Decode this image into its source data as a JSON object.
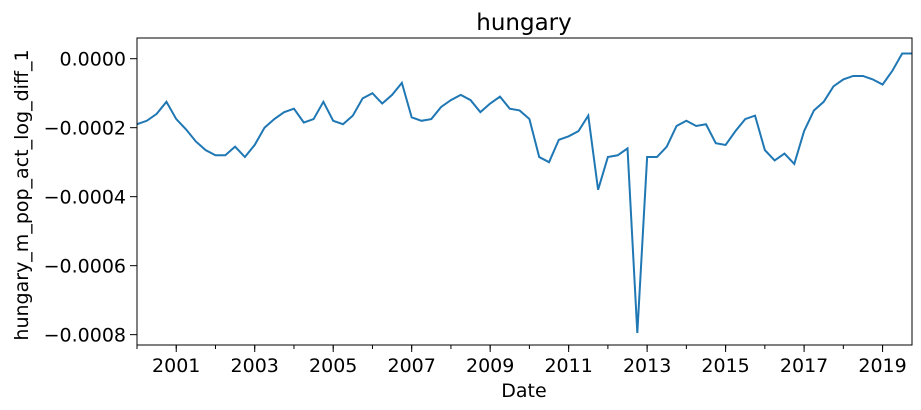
{
  "chart_data": {
    "type": "line",
    "title": "hungary",
    "xlabel": "Date",
    "ylabel": "hungary_m_pop_act_log_diff_1",
    "series_color": "#1f77b4",
    "xlim": [
      "2000-01",
      "2019-10"
    ],
    "ylim": [
      -0.00083,
      6e-05
    ],
    "x_ticks": [
      "2001",
      "2003",
      "2005",
      "2007",
      "2009",
      "2011",
      "2013",
      "2015",
      "2017",
      "2019"
    ],
    "y_ticks": [
      {
        "value": 0.0,
        "label": "0.0000"
      },
      {
        "value": -0.0002,
        "label": "−0.0002"
      },
      {
        "value": -0.0004,
        "label": "−0.0004"
      },
      {
        "value": -0.0006,
        "label": "−0.0006"
      },
      {
        "value": -0.0008,
        "label": "−0.0008"
      }
    ],
    "grid": false,
    "series": [
      {
        "points": [
          [
            "2000-01",
            -0.00019
          ],
          [
            "2000-04",
            -0.00018
          ],
          [
            "2000-07",
            -0.00016
          ],
          [
            "2000-10",
            -0.000125
          ],
          [
            "2001-01",
            -0.000175
          ],
          [
            "2001-04",
            -0.000205
          ],
          [
            "2001-07",
            -0.00024
          ],
          [
            "2001-10",
            -0.000265
          ],
          [
            "2002-01",
            -0.00028
          ],
          [
            "2002-04",
            -0.00028
          ],
          [
            "2002-07",
            -0.000255
          ],
          [
            "2002-10",
            -0.000285
          ],
          [
            "2003-01",
            -0.00025
          ],
          [
            "2003-04",
            -0.0002
          ],
          [
            "2003-07",
            -0.000175
          ],
          [
            "2003-10",
            -0.000155
          ],
          [
            "2004-01",
            -0.000145
          ],
          [
            "2004-04",
            -0.000185
          ],
          [
            "2004-07",
            -0.000175
          ],
          [
            "2004-10",
            -0.000125
          ],
          [
            "2005-01",
            -0.00018
          ],
          [
            "2005-04",
            -0.00019
          ],
          [
            "2005-07",
            -0.000165
          ],
          [
            "2005-10",
            -0.000115
          ],
          [
            "2006-01",
            -0.0001
          ],
          [
            "2006-04",
            -0.00013
          ],
          [
            "2006-07",
            -0.000105
          ],
          [
            "2006-10",
            -7e-05
          ],
          [
            "2007-01",
            -0.00017
          ],
          [
            "2007-04",
            -0.00018
          ],
          [
            "2007-07",
            -0.000175
          ],
          [
            "2007-10",
            -0.00014
          ],
          [
            "2008-01",
            -0.00012
          ],
          [
            "2008-04",
            -0.000105
          ],
          [
            "2008-07",
            -0.00012
          ],
          [
            "2008-10",
            -0.000155
          ],
          [
            "2009-01",
            -0.00013
          ],
          [
            "2009-04",
            -0.00011
          ],
          [
            "2009-07",
            -0.000145
          ],
          [
            "2009-10",
            -0.00015
          ],
          [
            "2010-01",
            -0.000175
          ],
          [
            "2010-04",
            -0.000285
          ],
          [
            "2010-07",
            -0.0003
          ],
          [
            "2010-10",
            -0.000235
          ],
          [
            "2011-01",
            -0.000225
          ],
          [
            "2011-04",
            -0.00021
          ],
          [
            "2011-07",
            -0.000165
          ],
          [
            "2011-10",
            -0.00038
          ],
          [
            "2012-01",
            -0.000285
          ],
          [
            "2012-04",
            -0.00028
          ],
          [
            "2012-07",
            -0.00026
          ],
          [
            "2012-10",
            -0.000795
          ],
          [
            "2013-01",
            -0.000285
          ],
          [
            "2013-04",
            -0.000285
          ],
          [
            "2013-07",
            -0.000255
          ],
          [
            "2013-10",
            -0.000195
          ],
          [
            "2014-01",
            -0.00018
          ],
          [
            "2014-04",
            -0.000195
          ],
          [
            "2014-07",
            -0.00019
          ],
          [
            "2014-10",
            -0.000245
          ],
          [
            "2015-01",
            -0.00025
          ],
          [
            "2015-04",
            -0.00021
          ],
          [
            "2015-07",
            -0.000175
          ],
          [
            "2015-10",
            -0.000165
          ],
          [
            "2016-01",
            -0.000265
          ],
          [
            "2016-04",
            -0.000295
          ],
          [
            "2016-07",
            -0.000275
          ],
          [
            "2016-10",
            -0.000305
          ],
          [
            "2017-01",
            -0.00021
          ],
          [
            "2017-04",
            -0.00015
          ],
          [
            "2017-07",
            -0.000125
          ],
          [
            "2017-10",
            -8e-05
          ],
          [
            "2018-01",
            -6e-05
          ],
          [
            "2018-04",
            -5e-05
          ],
          [
            "2018-07",
            -5e-05
          ],
          [
            "2018-10",
            -6e-05
          ],
          [
            "2019-01",
            -7.5e-05
          ],
          [
            "2019-04",
            -3.5e-05
          ],
          [
            "2019-07",
            1.5e-05
          ],
          [
            "2019-10",
            1.5e-05
          ]
        ]
      }
    ]
  }
}
